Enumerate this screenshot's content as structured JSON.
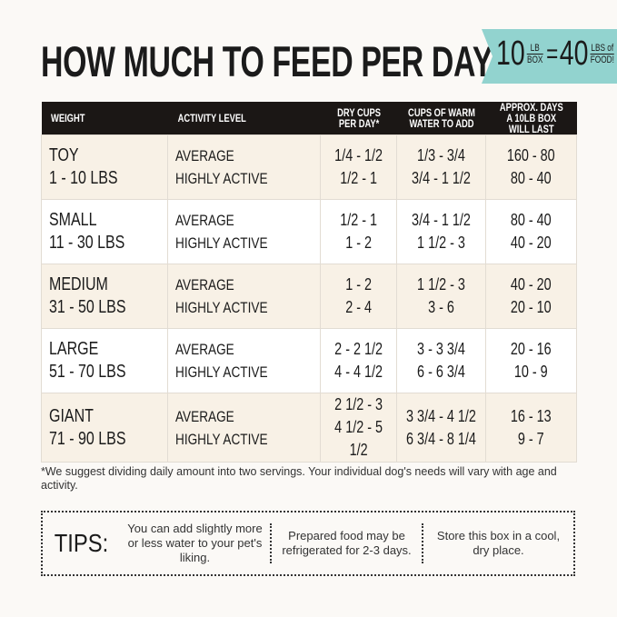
{
  "title": "HOW MUCH TO FEED PER DAY",
  "banner": {
    "num1": "10",
    "unit1_top": "LB",
    "unit1_bottom": "BOX",
    "equals": "=",
    "num2": "40",
    "unit2_top": "LBS of",
    "unit2_bottom": "FOOD!",
    "color": "#92d3cf"
  },
  "table": {
    "headers": [
      "WEIGHT",
      "ACTIVITY LEVEL",
      "DRY CUPS PER DAY*",
      "CUPS OF WARM WATER TO ADD",
      "APPROX. DAYS A 10LB BOX WILL LAST"
    ],
    "rows": [
      {
        "size": "TOY",
        "range": "1 - 10 LBS",
        "activity": [
          "AVERAGE",
          "HIGHLY ACTIVE"
        ],
        "dry": [
          "1/4 - 1/2",
          "1/2 - 1"
        ],
        "water": [
          "1/3 - 3/4",
          "3/4 - 1 1/2"
        ],
        "days": [
          "160 - 80",
          "80 - 40"
        ]
      },
      {
        "size": "SMALL",
        "range": "11 - 30 LBS",
        "activity": [
          "AVERAGE",
          "HIGHLY ACTIVE"
        ],
        "dry": [
          "1/2 - 1",
          "1 - 2"
        ],
        "water": [
          "3/4 - 1 1/2",
          "1 1/2 - 3"
        ],
        "days": [
          "80 - 40",
          "40 - 20"
        ]
      },
      {
        "size": "MEDIUM",
        "range": "31 - 50 LBS",
        "activity": [
          "AVERAGE",
          "HIGHLY ACTIVE"
        ],
        "dry": [
          "1 - 2",
          "2 - 4"
        ],
        "water": [
          "1 1/2 - 3",
          "3 - 6"
        ],
        "days": [
          "40 - 20",
          "20 - 10"
        ]
      },
      {
        "size": "LARGE",
        "range": "51 - 70 LBS",
        "activity": [
          "AVERAGE",
          "HIGHLY ACTIVE"
        ],
        "dry": [
          "2 - 2 1/2",
          "4 - 4 1/2"
        ],
        "water": [
          "3 - 3 3/4",
          "6 - 6 3/4"
        ],
        "days": [
          "20 - 16",
          "10 - 9"
        ]
      },
      {
        "size": "GIANT",
        "range": "71 - 90 LBS",
        "activity": [
          "AVERAGE",
          "HIGHLY ACTIVE"
        ],
        "dry": [
          "2 1/2 - 3",
          "4 1/2 - 5 1/2"
        ],
        "water": [
          "3 3/4 - 4 1/2",
          "6 3/4 - 8 1/4"
        ],
        "days": [
          "16 - 13",
          "9 - 7"
        ]
      }
    ]
  },
  "footnote": "*We suggest dividing daily amount into two servings. Your individual dog's needs will vary with age and activity.",
  "tips": {
    "label": "TIPS:",
    "items": [
      "You can add slightly more or less water to your pet's liking.",
      "Prepared food may be refrigerated for 2-3 days.",
      "Store this box in a cool, dry place."
    ]
  }
}
